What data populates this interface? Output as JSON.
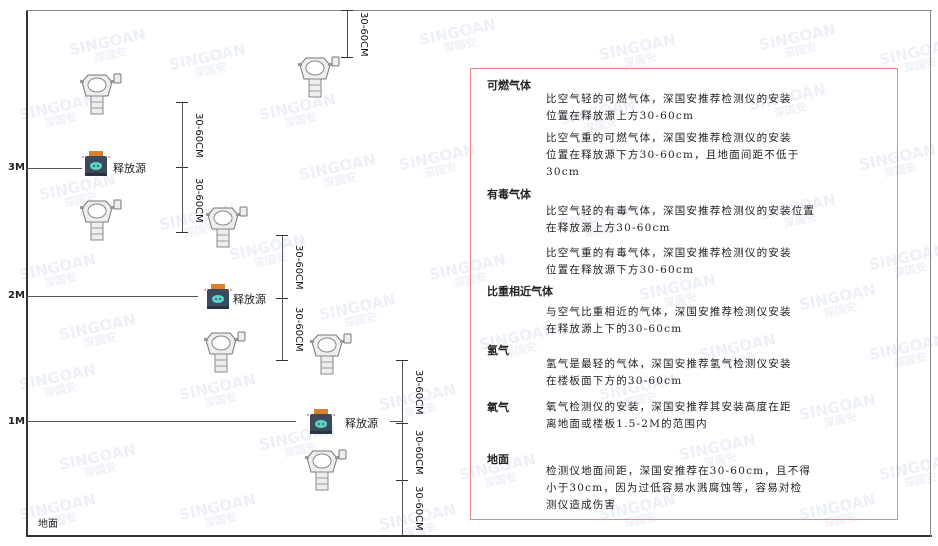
{
  "watermark": {
    "brand": "SINGOAN",
    "cn": "深国安"
  },
  "heights": {
    "m3": "3M",
    "m2": "2M",
    "m1": "1M",
    "ground": "地面"
  },
  "dimension_label": "30-60CM",
  "release_source_label": "释放源",
  "colors": {
    "box_border": "#e88a8a",
    "source_body": "#3c4b5c",
    "source_cap": "#d9822b",
    "source_face": "#5fd3c8"
  },
  "info": {
    "sections": [
      {
        "title": "可燃气体",
        "paras": [
          [
            "比空气轻的可燃气体，深国安推荐检测仪的安装",
            "位置在释放源上方30-60cm"
          ],
          [
            "比空气重的可燃气体，深国安推荐检测仪的安装",
            "位置在释放源下方30-60cm，且地面间距不低于",
            "30cm"
          ]
        ]
      },
      {
        "title": "有毒气体",
        "paras": [
          [
            "比空气轻的有毒气体，深国安推荐检测仪的安装位置",
            "在释放源上方30-60cm"
          ],
          [
            "比空气重的有毒气体，深国安推荐检测仪的安装",
            "位置在释放源下方30-60cm"
          ]
        ]
      },
      {
        "title": "比重相近气体",
        "paras": [
          [
            "与空气比重相近的气体，深国安推荐检测仪安装",
            "在释放源上下的30-60cm"
          ]
        ]
      },
      {
        "title": "氢气",
        "paras": [
          [
            "氢气是最轻的气体，深国安推荐氢气检测仪安装",
            "在楼板面下方的30-60cm"
          ]
        ]
      },
      {
        "title": "氧气",
        "paras": [
          [
            "氧气检测仪的安装，深国安推荐其安装高度在距",
            "离地面或楼板1.5-2M的范围内"
          ]
        ]
      },
      {
        "title": "地面",
        "paras": [
          [
            "检测仪地面间距，深国安推荐在30-60cm，且不得",
            "小于30cm，因为过低容易水溅腐蚀等，容易对检",
            "测仪造成伤害"
          ]
        ]
      }
    ]
  }
}
